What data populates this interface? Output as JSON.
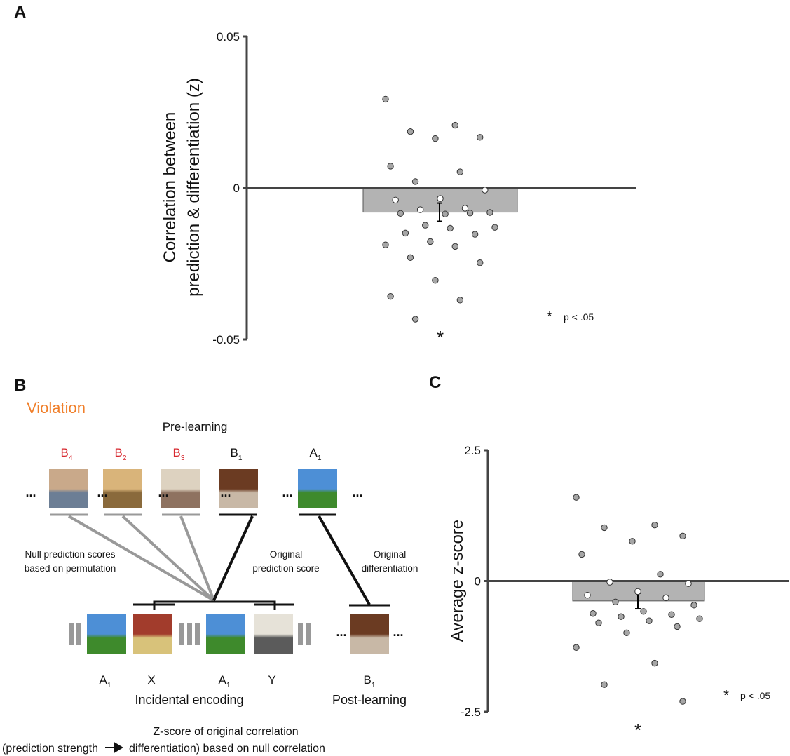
{
  "chart_data": [
    {
      "type": "bar",
      "panel_label": "A",
      "ylabel": [
        "Correlation between",
        "prediction & differentiation (z)"
      ],
      "values": [
        -0.008
      ],
      "errors": [
        0.003
      ],
      "color": "#b3b3b3",
      "points": [
        0.0293,
        0.0207,
        0.0186,
        0.0167,
        0.0163,
        0.0072,
        0.0053,
        0.0021,
        -0.0007,
        -0.0035,
        -0.004,
        -0.0067,
        -0.0072,
        -0.0081,
        -0.0086,
        -0.0084,
        -0.0083,
        -0.0123,
        -0.013,
        -0.0133,
        -0.0149,
        -0.0153,
        -0.0177,
        -0.0188,
        -0.0193,
        -0.023,
        -0.0247,
        -0.0305,
        -0.0358,
        -0.037,
        -0.0433
      ],
      "ylim": [
        -0.05,
        0.05
      ],
      "yticks": [
        0.05,
        0,
        -0.05
      ],
      "annotation": "*",
      "legend": {
        "symbol": "*",
        "text": "p < .05"
      }
    },
    {
      "type": "bar",
      "panel_label": "C",
      "ylabel": [
        "Average z-score"
      ],
      "values": [
        -0.38
      ],
      "errors": [
        0.15
      ],
      "color": "#b3b3b3",
      "points": [
        1.6,
        1.07,
        1.02,
        0.86,
        0.76,
        0.51,
        0.13,
        -0.02,
        -0.05,
        -0.2,
        -0.27,
        -0.32,
        -0.4,
        -0.46,
        -0.58,
        -0.62,
        -0.64,
        -0.68,
        -0.72,
        -0.76,
        -0.8,
        -0.87,
        -0.99,
        -1.27,
        -1.57,
        -1.98,
        -2.3
      ],
      "ylim": [
        -2.5,
        2.5
      ],
      "yticks": [
        2.5,
        0,
        -2.5
      ],
      "annotation": "*",
      "legend": {
        "symbol": "*",
        "text": "p < .05"
      }
    }
  ],
  "diagram": {
    "panel_label": "B",
    "condition": "Violation",
    "pre_label": "Pre-learning",
    "pre_items": [
      {
        "letter": "B",
        "sub": "4"
      },
      {
        "letter": "B",
        "sub": "2"
      },
      {
        "letter": "B",
        "sub": "3"
      },
      {
        "letter": "B",
        "sub": "1"
      },
      {
        "letter": "A",
        "sub": "1"
      }
    ],
    "null_label": [
      "Null prediction scores",
      "based on permutation"
    ],
    "orig_pred_label": [
      "Original",
      "prediction score"
    ],
    "orig_diff_label": [
      "Original",
      "differentiation"
    ],
    "encoding_items": [
      {
        "letter": "A",
        "sub": "1"
      },
      {
        "letter": "X",
        "sub": ""
      },
      {
        "letter": "A",
        "sub": "1"
      },
      {
        "letter": "Y",
        "sub": ""
      }
    ],
    "post_item": {
      "letter": "B",
      "sub": "1"
    },
    "encoding_label": "Incidental encoding",
    "post_label": "Post-learning",
    "caption": [
      "Z-score of original correlation",
      "(prediction strength",
      "differentiation) based on null correlation"
    ]
  }
}
